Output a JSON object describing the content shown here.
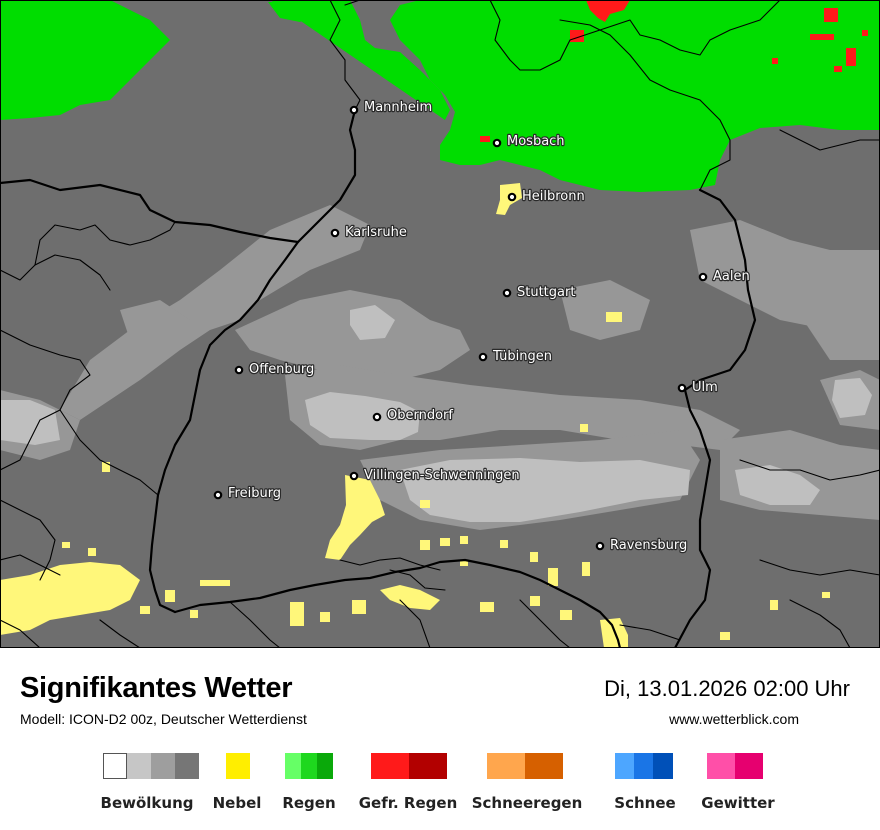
{
  "map": {
    "cities": [
      {
        "name": "Mannheim"
      },
      {
        "name": "Mosbach"
      },
      {
        "name": "Heilbronn"
      },
      {
        "name": "Karlsruhe"
      },
      {
        "name": "Aalen"
      },
      {
        "name": "Stuttgart"
      },
      {
        "name": "Tübingen"
      },
      {
        "name": "Offenburg"
      },
      {
        "name": "Ulm"
      },
      {
        "name": "Oberndorf"
      },
      {
        "name": "Villingen-Schwenningen"
      },
      {
        "name": "Freiburg"
      },
      {
        "name": "Ravensburg"
      }
    ],
    "colors": {
      "cloud_dark": "#6e6e6e",
      "cloud_medium": "#979797",
      "cloud_light": "#bfbfbf",
      "fog": "#fff77a",
      "rain": "#00dd00",
      "freezing_rain": "#ff1a1a",
      "border": "#000000"
    }
  },
  "footer": {
    "title": "Signifikantes Wetter",
    "subtitle": "Modell: ICON-D2 00z, Deutscher Wetterdienst",
    "datetime": "Di, 13.01.2026 02:00 Uhr",
    "website": "www.wetterblick.com"
  },
  "legend": [
    {
      "label": "Bewölkung",
      "colors": [
        "#ffffff",
        "#c6c6c6",
        "#9e9e9e",
        "#767676"
      ]
    },
    {
      "label": "Nebel",
      "colors": [
        "#ffee00"
      ]
    },
    {
      "label": "Regen",
      "colors": [
        "#66ff66",
        "#1ed81e",
        "#0aa90a"
      ]
    },
    {
      "label": "Gefr. Regen",
      "colors": [
        "#ff1a1a",
        "#b20000"
      ]
    },
    {
      "label": "Schneeregen",
      "colors": [
        "#ffa64d",
        "#d66000"
      ]
    },
    {
      "label": "Schnee",
      "colors": [
        "#4da6ff",
        "#1a75e6",
        "#0050b8"
      ]
    },
    {
      "label": "Gewitter",
      "colors": [
        "#ff4fa8",
        "#e6006f"
      ]
    }
  ]
}
